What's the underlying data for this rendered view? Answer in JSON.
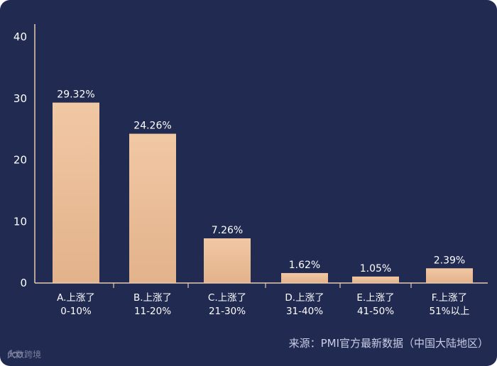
{
  "chart_data": {
    "type": "bar",
    "categories": [
      [
        "A.上涨了",
        "0-10%"
      ],
      [
        "B.上涨了",
        "11-20%"
      ],
      [
        "C.上涨了",
        "21-30%"
      ],
      [
        "D.上涨了",
        "31-40%"
      ],
      [
        "E.上涨了",
        "41-50%"
      ],
      [
        "F.上涨了",
        "51%以上"
      ]
    ],
    "values": [
      29.32,
      24.26,
      7.26,
      1.62,
      1.05,
      2.39
    ],
    "value_labels": [
      "29.32%",
      "24.26%",
      "7.26%",
      "1.62%",
      "1.05%",
      "2.39%"
    ],
    "title": "",
    "xlabel": "",
    "ylabel": "",
    "ylim": [
      0,
      40
    ],
    "yticks": [
      0,
      10,
      20,
      30,
      40
    ],
    "grid": false,
    "colors": {
      "background": "#212a50",
      "bar_top": "#f1c8a4",
      "bar_bottom": "#e2b28b",
      "axis": "#e8c9b0"
    }
  },
  "footer": {
    "source": "来源：PMI官方最新数据（中国大陆地区）",
    "brand": "大数跨境",
    "brand_icon": "brand-logo-icon"
  }
}
